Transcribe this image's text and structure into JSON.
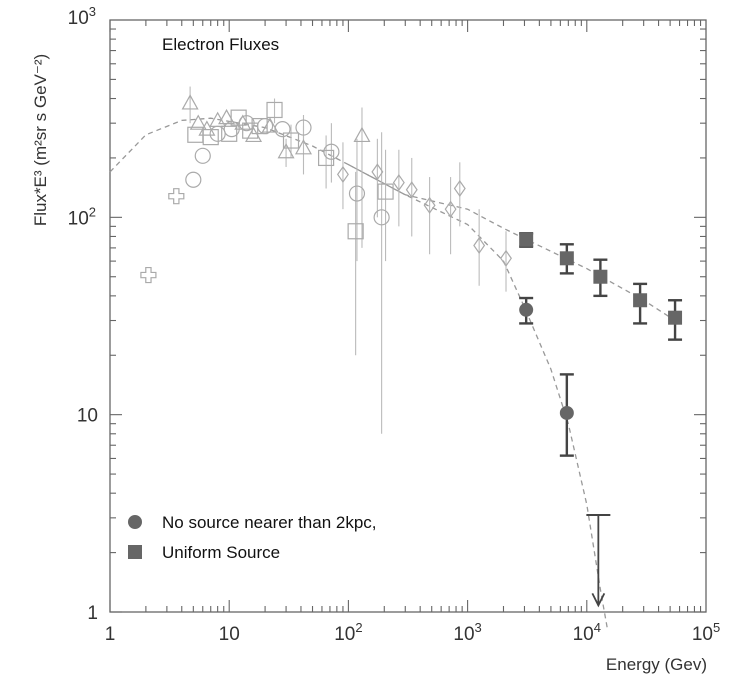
{
  "chart_data": {
    "type": "scatter",
    "title": "",
    "annotation": "Electron Fluxes",
    "xlabel": "Energy (Gev)",
    "ylabel": "Flux*E³ (m²sr s GeV⁻²)",
    "xscale": "log",
    "yscale": "log",
    "xlim": [
      1,
      100000
    ],
    "ylim": [
      1,
      1000
    ],
    "x_ticks": [
      {
        "value": 1,
        "base": "1",
        "exp": ""
      },
      {
        "value": 10,
        "base": "10",
        "exp": ""
      },
      {
        "value": 100,
        "base": "10",
        "exp": "2"
      },
      {
        "value": 1000,
        "base": "10",
        "exp": "3"
      },
      {
        "value": 10000,
        "base": "10",
        "exp": "4"
      },
      {
        "value": 100000,
        "base": "10",
        "exp": "5"
      }
    ],
    "y_ticks": [
      {
        "value": 1,
        "base": "1",
        "exp": ""
      },
      {
        "value": 10,
        "base": "10",
        "exp": ""
      },
      {
        "value": 100,
        "base": "10",
        "exp": "2"
      },
      {
        "value": 1000,
        "base": "10",
        "exp": "3"
      }
    ],
    "legend": {
      "position": "bottom-left",
      "entries": [
        {
          "label": "No source nearer than 2kpc,",
          "marker": "circle",
          "color": "#666666"
        },
        {
          "label": "Uniform Source",
          "marker": "square",
          "color": "#666666"
        }
      ]
    },
    "series": [
      {
        "name": "No source nearer than 2kpc,",
        "marker": "circle-filled",
        "color": "#666666",
        "points": [
          {
            "x": 3100,
            "y": 34,
            "ylo": 29,
            "yhi": 39
          },
          {
            "x": 6800,
            "y": 10.2,
            "ylo": 6.2,
            "yhi": 16
          }
        ],
        "upper_limit": {
          "x": 12500,
          "y": 3.1,
          "arrow_to": 1.08
        },
        "model_curve": [
          [
            1,
            170
          ],
          [
            2,
            262
          ],
          [
            4,
            310
          ],
          [
            7,
            318
          ],
          [
            20,
            285
          ],
          [
            50,
            230
          ],
          [
            100,
            185
          ],
          [
            300,
            130
          ],
          [
            1000,
            92
          ],
          [
            2000,
            60
          ],
          [
            3000,
            35
          ],
          [
            5000,
            17
          ],
          [
            7000,
            9
          ],
          [
            10000,
            3.5
          ],
          [
            13000,
            1.3
          ],
          [
            15000,
            0.8
          ]
        ]
      },
      {
        "name": "Uniform Source",
        "marker": "square-filled",
        "color": "#666666",
        "points": [
          {
            "x": 3100,
            "y": 77,
            "ylo": 71,
            "yhi": 83
          },
          {
            "x": 6800,
            "y": 62,
            "ylo": 52,
            "yhi": 73
          },
          {
            "x": 13000,
            "y": 50,
            "ylo": 40,
            "yhi": 61
          },
          {
            "x": 28000,
            "y": 38,
            "ylo": 29,
            "yhi": 46
          },
          {
            "x": 55000,
            "y": 31,
            "ylo": 24,
            "yhi": 38
          }
        ],
        "model_curve": [
          [
            100,
            185
          ],
          [
            300,
            130
          ],
          [
            1000,
            110
          ],
          [
            2000,
            88
          ],
          [
            3000,
            78
          ],
          [
            10000,
            55
          ],
          [
            30000,
            38
          ],
          [
            55000,
            30
          ]
        ]
      },
      {
        "name": "",
        "marker": "cross-open",
        "color": "#aaaaaa",
        "points": [
          {
            "x": 2.1,
            "y": 51
          },
          {
            "x": 3.6,
            "y": 128
          }
        ]
      },
      {
        "name": "",
        "marker": "circle-open",
        "color": "#aaaaaa",
        "points": [
          {
            "x": 5.0,
            "y": 155
          },
          {
            "x": 6.0,
            "y": 205
          },
          {
            "x": 8.0,
            "y": 265
          },
          {
            "x": 10.5,
            "y": 280
          },
          {
            "x": 14,
            "y": 300
          },
          {
            "x": 20,
            "y": 290
          },
          {
            "x": 28,
            "y": 280
          },
          {
            "x": 42,
            "y": 285,
            "ylo": 245,
            "yhi": 330
          },
          {
            "x": 72,
            "y": 215,
            "ylo": 150,
            "yhi": 300
          },
          {
            "x": 118,
            "y": 132,
            "ylo": 60,
            "yhi": 250
          },
          {
            "x": 190,
            "y": 100,
            "ylo": 8,
            "yhi": 270
          }
        ]
      },
      {
        "name": "",
        "marker": "triangle-open",
        "color": "#aaaaaa",
        "points": [
          {
            "x": 4.7,
            "y": 380,
            "ylo": 300,
            "yhi": 460
          },
          {
            "x": 5.5,
            "y": 300
          },
          {
            "x": 6.5,
            "y": 280
          },
          {
            "x": 8,
            "y": 310
          },
          {
            "x": 9.5,
            "y": 320
          },
          {
            "x": 13,
            "y": 300
          },
          {
            "x": 16,
            "y": 260
          },
          {
            "x": 22,
            "y": 290
          },
          {
            "x": 30,
            "y": 215,
            "ylo": 180,
            "yhi": 250
          },
          {
            "x": 42,
            "y": 225,
            "ylo": 165,
            "yhi": 290
          },
          {
            "x": 130,
            "y": 260,
            "ylo": 70,
            "yhi": 360
          }
        ]
      },
      {
        "name": "",
        "marker": "square-open",
        "color": "#aaaaaa",
        "points": [
          {
            "x": 5.2,
            "y": 262
          },
          {
            "x": 7,
            "y": 255
          },
          {
            "x": 10,
            "y": 265
          },
          {
            "x": 12,
            "y": 320
          },
          {
            "x": 15,
            "y": 275
          },
          {
            "x": 18,
            "y": 290
          },
          {
            "x": 24,
            "y": 350,
            "ylo": 300,
            "yhi": 400
          },
          {
            "x": 33,
            "y": 245,
            "ylo": 200,
            "yhi": 295
          },
          {
            "x": 65,
            "y": 200,
            "ylo": 140,
            "yhi": 260
          },
          {
            "x": 115,
            "y": 85,
            "ylo": 20,
            "yhi": 170
          },
          {
            "x": 205,
            "y": 135,
            "ylo": 60,
            "yhi": 220
          }
        ]
      },
      {
        "name": "",
        "marker": "diamond-open",
        "color": "#aaaaaa",
        "points": [
          {
            "x": 90,
            "y": 165,
            "ylo": 110,
            "yhi": 240
          },
          {
            "x": 175,
            "y": 170,
            "ylo": 100,
            "yhi": 250
          },
          {
            "x": 265,
            "y": 150,
            "ylo": 90,
            "yhi": 220
          },
          {
            "x": 340,
            "y": 138,
            "ylo": 80,
            "yhi": 200
          },
          {
            "x": 480,
            "y": 115,
            "ylo": 65,
            "yhi": 160
          },
          {
            "x": 720,
            "y": 110,
            "ylo": 65,
            "yhi": 160
          },
          {
            "x": 860,
            "y": 140,
            "ylo": 90,
            "yhi": 190
          },
          {
            "x": 1250,
            "y": 72,
            "ylo": 45,
            "yhi": 110
          },
          {
            "x": 2100,
            "y": 62,
            "ylo": 42,
            "yhi": 85
          }
        ]
      }
    ]
  }
}
